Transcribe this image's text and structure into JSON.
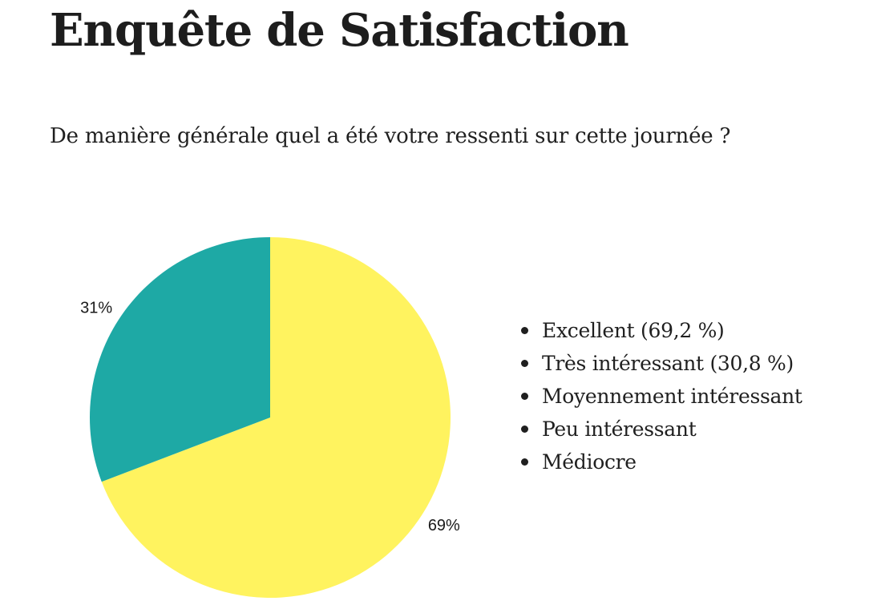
{
  "page": {
    "title": "Enquête de Satisfaction",
    "question": "De manière générale quel a été votre ressenti sur cette journée ?"
  },
  "legend": {
    "items": [
      {
        "label": "Excellent (69,2 %)"
      },
      {
        "label": "Très intéressant (30,8 %)"
      },
      {
        "label": "Moyennement intéressant"
      },
      {
        "label": "Peu intéressant"
      },
      {
        "label": "Médiocre"
      }
    ]
  },
  "chart_data": {
    "type": "pie",
    "title": "",
    "slices": [
      {
        "name": "Excellent",
        "value": 69.2,
        "display_label": "69%",
        "color": "#FFF35F"
      },
      {
        "name": "Très intéressant",
        "value": 30.8,
        "display_label": "31%",
        "color": "#1EA9A5"
      }
    ],
    "legend_position": "right"
  }
}
